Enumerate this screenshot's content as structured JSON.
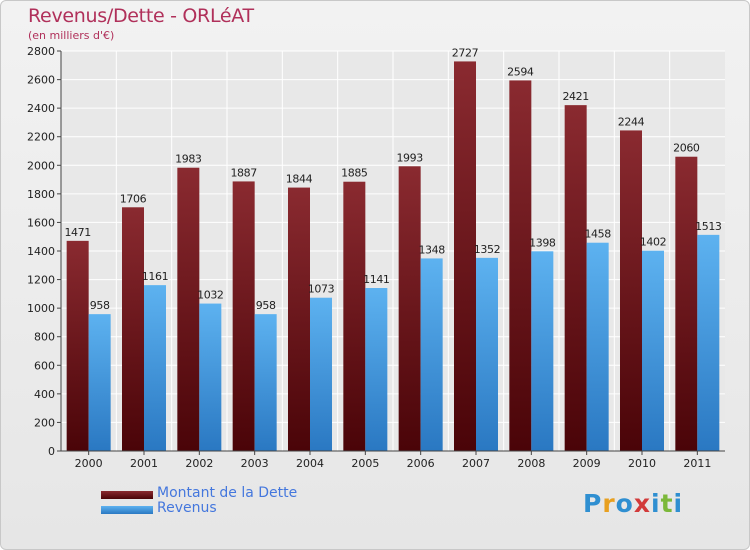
{
  "header": {
    "title": "Revenus/Dette - ORLéAT",
    "subtitle": "(en milliers d'€)"
  },
  "colors": {
    "dette": "#7a1c26",
    "revenus": "#4aa3e6"
  },
  "chart_data": {
    "type": "bar",
    "title": "Revenus/Dette - ORLéAT",
    "subtitle": "(en milliers d'€)",
    "categories": [
      "2000",
      "2001",
      "2002",
      "2003",
      "2004",
      "2005",
      "2006",
      "2007",
      "2008",
      "2009",
      "2010",
      "2011"
    ],
    "series": [
      {
        "name": "Montant de la Dette",
        "values": [
          1471,
          1706,
          1983,
          1887,
          1844,
          1885,
          1993,
          2727,
          2594,
          2421,
          2244,
          2060
        ]
      },
      {
        "name": "Revenus",
        "values": [
          958,
          1161,
          1032,
          958,
          1073,
          1141,
          1348,
          1352,
          1398,
          1458,
          1402,
          1513
        ]
      }
    ],
    "ylim": [
      0,
      2800
    ],
    "yticks": [
      0,
      200,
      400,
      600,
      800,
      1000,
      1200,
      1400,
      1600,
      1800,
      2000,
      2200,
      2400,
      2600,
      2800
    ],
    "grid": true,
    "legend_position": "bottom-left"
  },
  "legend": {
    "items": [
      {
        "label": "Montant de la Dette"
      },
      {
        "label": "Revenus"
      }
    ]
  },
  "logo": {
    "letters": [
      "P",
      "r",
      "o",
      "x",
      "i",
      "t",
      "i"
    ],
    "colors": [
      "#2f8fd1",
      "#e8a020",
      "#2f8fd1",
      "#d23a3a",
      "#2f8fd1",
      "#7cb83a",
      "#2f8fd1"
    ]
  }
}
